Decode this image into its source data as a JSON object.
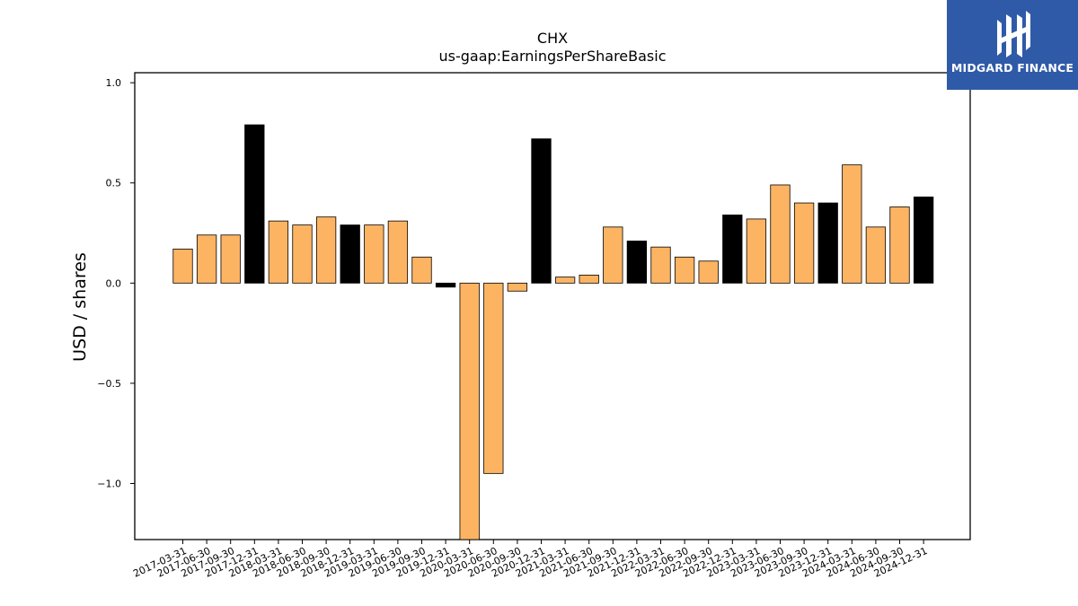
{
  "chart_data": {
    "type": "bar",
    "title": "CHX",
    "subtitle": "us-gaap:EarningsPerShareBasic",
    "xlabel": "",
    "ylabel": "USD / shares",
    "ylim": [
      -1.28,
      1.05
    ],
    "yticks": [
      1.0,
      0.5,
      0.0,
      -0.5,
      -1.0
    ],
    "ytick_labels": [
      "1.0",
      "0.5",
      "0.0",
      "−0.5",
      "−1.0"
    ],
    "grid": false,
    "categories": [
      "2017-03-31",
      "2017-06-30",
      "2017-09-30",
      "2017-12-31",
      "2018-03-31",
      "2018-06-30",
      "2018-09-30",
      "2018-12-31",
      "2019-03-31",
      "2019-06-30",
      "2019-09-30",
      "2019-12-31",
      "2020-03-31",
      "2020-06-30",
      "2020-09-30",
      "2020-12-31",
      "2021-03-31",
      "2021-06-30",
      "2021-09-30",
      "2021-12-31",
      "2022-03-31",
      "2022-06-30",
      "2022-09-30",
      "2022-12-31",
      "2023-03-31",
      "2023-06-30",
      "2023-09-30",
      "2023-12-31",
      "2024-03-31",
      "2024-06-30",
      "2024-09-30",
      "2024-12-31"
    ],
    "values": [
      0.17,
      0.24,
      0.24,
      0.79,
      0.31,
      0.29,
      0.33,
      0.29,
      0.29,
      0.31,
      0.13,
      -0.02,
      -1.28,
      -0.95,
      -0.04,
      0.72,
      0.03,
      0.04,
      0.28,
      0.21,
      0.18,
      0.13,
      0.11,
      0.34,
      0.32,
      0.49,
      0.4,
      0.4,
      0.59,
      0.28,
      0.38,
      0.43
    ],
    "bar_colors": {
      "quarter": "#fdb462",
      "year_end": "#000000"
    },
    "edge_color": "#000000"
  },
  "logo": {
    "name": "MIDGARD FINANCE",
    "background": "#2f5aa8"
  }
}
